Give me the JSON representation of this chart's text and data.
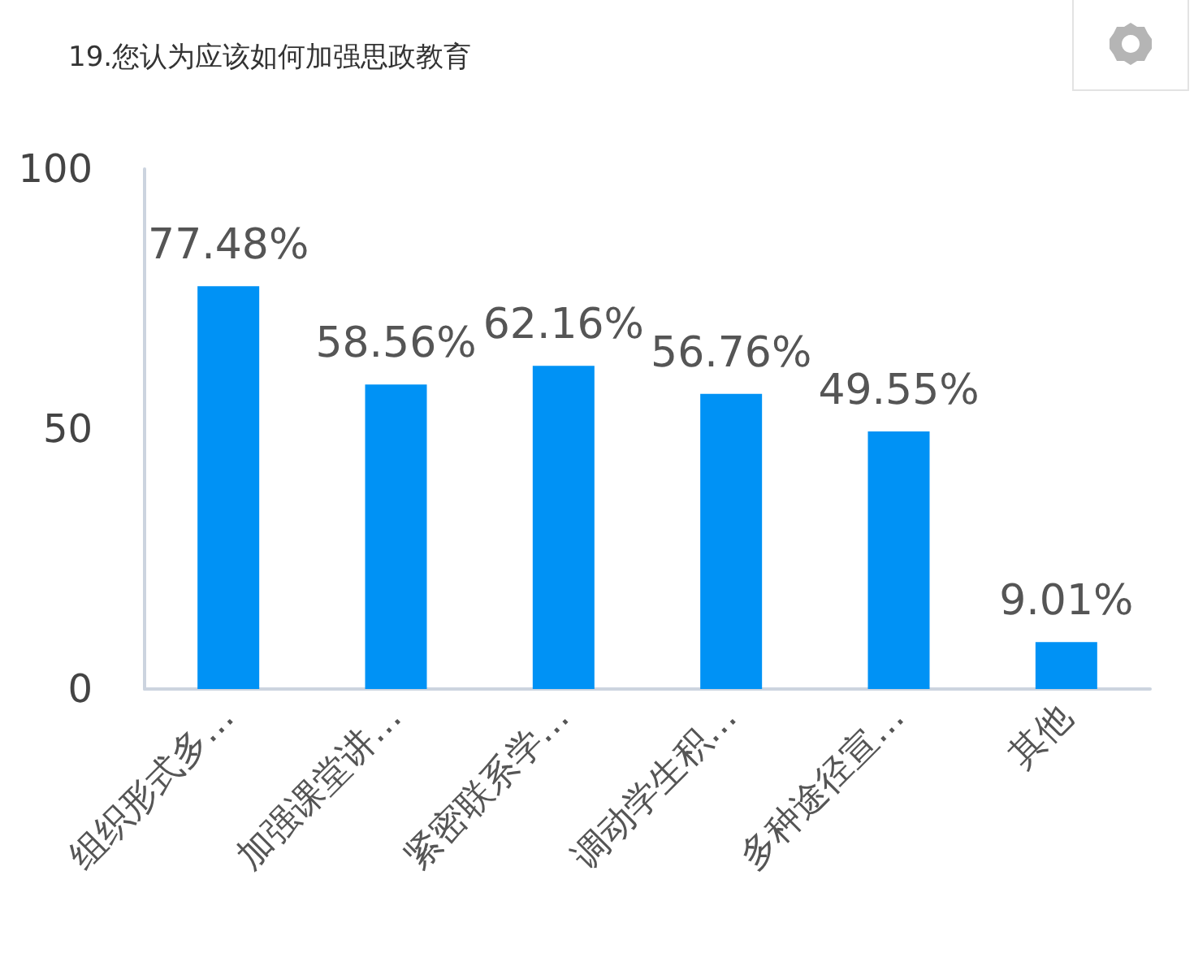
{
  "chart_data": {
    "type": "bar",
    "title": "19.您认为应该如何加强思政教育",
    "categories": [
      "组织形式多…",
      "加强课堂讲…",
      "紧密联系学…",
      "调动学生积…",
      "多种途径宣…",
      "其他"
    ],
    "values": [
      77.48,
      58.56,
      62.16,
      56.76,
      49.55,
      9.01
    ],
    "value_labels": [
      "77.48%",
      "58.56%",
      "62.16%",
      "56.76%",
      "49.55%",
      "9.01%"
    ],
    "color": "#0092f5",
    "ylim": [
      0,
      100
    ],
    "yticks": [
      0,
      50,
      100
    ]
  }
}
